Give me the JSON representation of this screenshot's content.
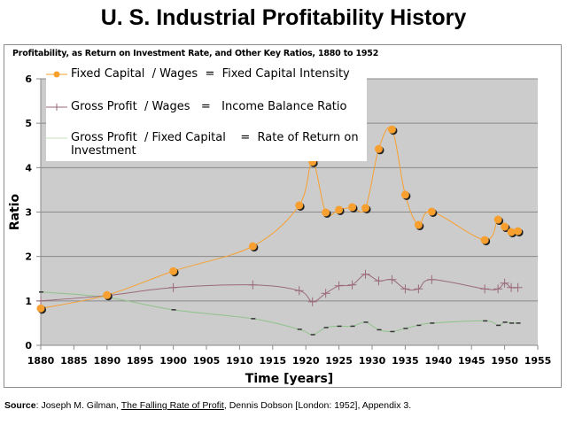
{
  "page": {
    "title": "U. S. Industrial Profitability History",
    "source": {
      "label": "Source",
      "text_before": ":  Joseph M. Gilman, ",
      "book": "The Falling Rate of Profit",
      "text_after": ", Dennis Dobson [London:  1952], Appendix 3."
    }
  },
  "chart_data": {
    "type": "line",
    "title": "Profitability, as Return on Investment Rate, and Other Key Ratios, 1880 to 1952",
    "xlabel": "Time [years]",
    "ylabel": "Ratio",
    "xlim": [
      1880,
      1955
    ],
    "ylim": [
      0,
      6
    ],
    "x_ticks": [
      1880,
      1885,
      1890,
      1895,
      1900,
      1905,
      1910,
      1915,
      1920,
      1925,
      1930,
      1935,
      1940,
      1945,
      1950,
      1955
    ],
    "y_ticks": [
      0,
      1,
      2,
      3,
      4,
      5,
      6
    ],
    "grid": "horizontal",
    "legend_position": "top-left",
    "reference_line": 1,
    "x": [
      1880,
      1890,
      1900,
      1912,
      1919,
      1921,
      1923,
      1925,
      1927,
      1929,
      1931,
      1933,
      1935,
      1937,
      1939,
      1947,
      1949,
      1950,
      1951,
      1952
    ],
    "series": [
      {
        "name": "Fixed Capital  / Wages  =  Fixed Capital Intensity",
        "color": "#f7a030",
        "marker": "circle",
        "values": [
          0.83,
          1.13,
          1.67,
          2.23,
          3.15,
          4.13,
          2.99,
          3.05,
          3.11,
          3.09,
          4.42,
          4.86,
          3.39,
          2.71,
          3.01,
          2.37,
          2.83,
          2.67,
          2.55,
          2.57
        ]
      },
      {
        "name": "Gross Profit  / Wages   =   Income Balance Ratio",
        "color": "#9a6a7a",
        "marker": "plus",
        "values": [
          1.0,
          1.12,
          1.3,
          1.36,
          1.23,
          0.98,
          1.17,
          1.34,
          1.36,
          1.6,
          1.45,
          1.48,
          1.27,
          1.27,
          1.48,
          1.27,
          1.27,
          1.4,
          1.3,
          1.3
        ]
      },
      {
        "name": "Gross Profit  / Fixed Capital    =  Rate of Return on Investment",
        "color": "#8fc48a",
        "marker": "dash",
        "values": [
          1.2,
          1.08,
          0.8,
          0.6,
          0.36,
          0.24,
          0.4,
          0.43,
          0.43,
          0.52,
          0.35,
          0.31,
          0.38,
          0.45,
          0.5,
          0.55,
          0.45,
          0.52,
          0.5,
          0.5
        ]
      }
    ],
    "legend": [
      {
        "line1": "Fixed Capital  / Wages  =  Fixed Capital Intensity"
      },
      {
        "line1": "Gross Profit  / Wages   =   Income Balance Ratio"
      },
      {
        "line1": "Gross Profit  / Fixed Capital    =  Rate of Return on",
        "line2": "Investment"
      }
    ]
  }
}
